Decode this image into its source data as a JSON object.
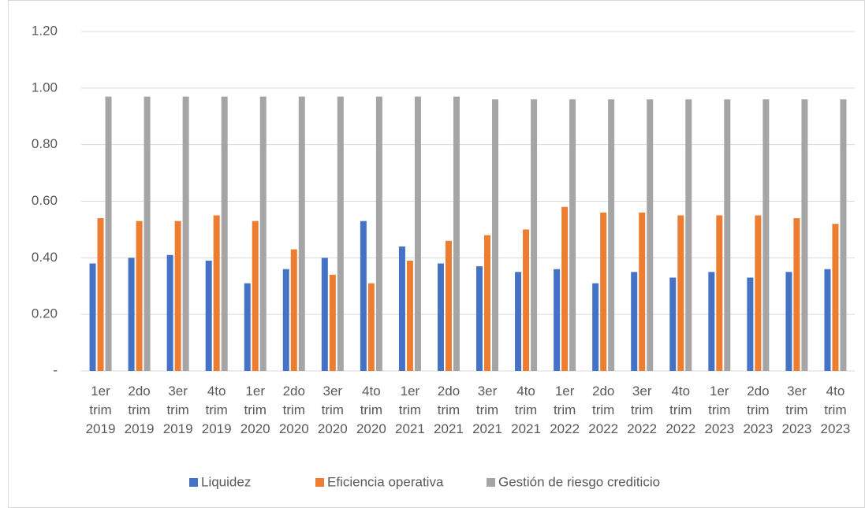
{
  "chart_data": {
    "type": "bar",
    "categories": [
      "1er trim 2019",
      "2do trim 2019",
      "3er trim 2019",
      "4to trim 2019",
      "1er trim 2020",
      "2do trim 2020",
      "3er trim 2020",
      "4to trim 2020",
      "1er trim 2021",
      "2do trim 2021",
      "3er trim 2021",
      "4to trim 2021",
      "1er trim 2022",
      "2do trim 2022",
      "3er trim 2022",
      "4to trim 2022",
      "1er trim 2023",
      "2do trim 2023",
      "3er trim 2023",
      "4to trim 2023"
    ],
    "series": [
      {
        "name": "Liquidez",
        "color": "#4472c4",
        "values": [
          0.38,
          0.4,
          0.41,
          0.39,
          0.31,
          0.36,
          0.4,
          0.53,
          0.44,
          0.38,
          0.37,
          0.35,
          0.36,
          0.31,
          0.35,
          0.33,
          0.35,
          0.33,
          0.35,
          0.36
        ]
      },
      {
        "name": "Eficiencia operativa",
        "color": "#ed7d31",
        "values": [
          0.54,
          0.53,
          0.53,
          0.55,
          0.53,
          0.43,
          0.34,
          0.31,
          0.39,
          0.46,
          0.48,
          0.5,
          0.58,
          0.56,
          0.56,
          0.55,
          0.55,
          0.55,
          0.54,
          0.52
        ]
      },
      {
        "name": "Gestión de riesgo crediticio",
        "color": "#a5a5a5",
        "values": [
          0.97,
          0.97,
          0.97,
          0.97,
          0.97,
          0.97,
          0.97,
          0.97,
          0.97,
          0.97,
          0.96,
          0.96,
          0.96,
          0.96,
          0.96,
          0.96,
          0.96,
          0.96,
          0.96,
          0.96
        ]
      }
    ],
    "ylim": [
      0,
      1.2
    ],
    "yticks": [
      {
        "value": 0,
        "label": "-"
      },
      {
        "value": 0.2,
        "label": "0.20"
      },
      {
        "value": 0.4,
        "label": "0.40"
      },
      {
        "value": 0.6,
        "label": "0.60"
      },
      {
        "value": 0.8,
        "label": "0.80"
      },
      {
        "value": 1.0,
        "label": "1.00"
      },
      {
        "value": 1.2,
        "label": "1.20"
      }
    ],
    "grid": true,
    "legend": "bottom"
  }
}
